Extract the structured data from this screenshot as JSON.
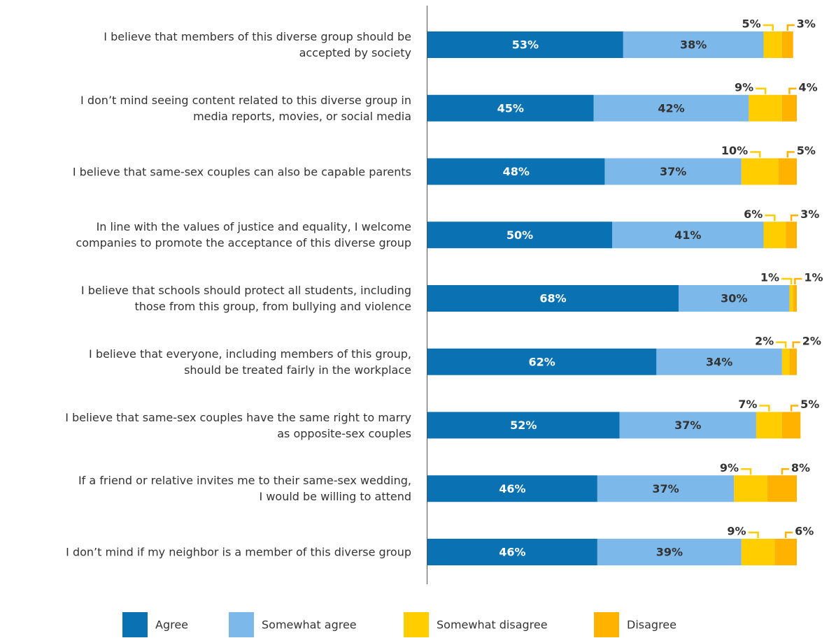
{
  "chart_data": {
    "type": "stacked-bar-horizontal",
    "categories": [
      "I believe that members of this diverse group should be\naccepted by society",
      "I don’t mind seeing content related to this diverse group in\nmedia reports, movies, or social media",
      "I believe that same-sex couples can also be capable parents",
      "In line with the values of justice and equality, I welcome\ncompanies to promote the acceptance of this diverse group",
      "I believe that schools should protect all students, including\nthose from this group, from bullying and violence",
      "I believe that everyone, including members of this group,\nshould be treated fairly in the workplace",
      "I believe that same-sex couples have the same right to marry\nas opposite-sex couples",
      "If a friend or relative invites me to their same-sex wedding,\nI would be willing to attend",
      "I don’t mind if my neighbor is a member of this diverse group"
    ],
    "series": [
      {
        "name": "Agree",
        "color": "#0a72b3",
        "values": [
          53,
          45,
          48,
          50,
          68,
          62,
          52,
          46,
          46
        ],
        "value_labels": [
          "53%",
          "45%",
          "48%",
          "50%",
          "68%",
          "62%",
          "52%",
          "46%",
          "46%"
        ]
      },
      {
        "name": "Somewhat agree",
        "color": "#7cb8ea",
        "values": [
          38,
          42,
          37,
          41,
          30,
          34,
          37,
          37,
          39
        ],
        "value_labels": [
          "38%",
          "42%",
          "37%",
          "41%",
          "30%",
          "34%",
          "37%",
          "37%",
          "39%"
        ]
      },
      {
        "name": "Somewhat disagree",
        "color": "#ffcd00",
        "values": [
          5,
          9,
          10,
          6,
          1,
          2,
          7,
          9,
          9
        ],
        "value_labels": [
          "5%",
          "9%",
          "10%",
          "6%",
          "1%",
          "2%",
          "7%",
          "9%",
          "9%"
        ]
      },
      {
        "name": "Disagree",
        "color": "#ffb200",
        "values": [
          3,
          4,
          5,
          3,
          1,
          2,
          5,
          8,
          6
        ],
        "value_labels": [
          "3%",
          "4%",
          "5%",
          "3%",
          "1%",
          "2%",
          "5%",
          "8%",
          "6%"
        ]
      }
    ],
    "xlim": [
      0,
      100
    ]
  }
}
